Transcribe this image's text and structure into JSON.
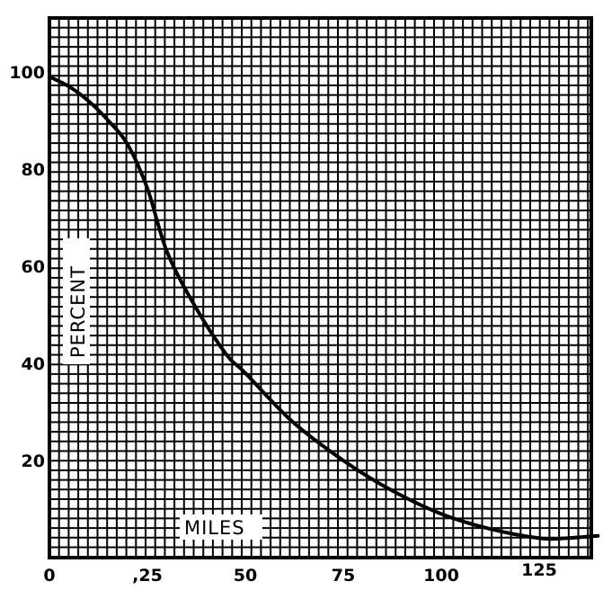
{
  "chart_data": {
    "type": "line",
    "title": "",
    "xlabel": "MILES",
    "ylabel": "PERCENT",
    "x_ticks": [
      "0",
      ",25",
      "50",
      "75",
      "100",
      "125"
    ],
    "y_ticks": [
      "20",
      "40",
      "60",
      "80",
      "100"
    ],
    "xlim": [
      0,
      140
    ],
    "ylim": [
      0,
      110
    ],
    "grid": true,
    "legend": null,
    "series": [
      {
        "name": "percent",
        "x": [
          0,
          5,
          10,
          15,
          20,
          25,
          30,
          37,
          45,
          50,
          62,
          75,
          87,
          100,
          112,
          125,
          132,
          140
        ],
        "y": [
          99,
          97,
          94,
          90,
          85,
          76,
          63,
          52,
          42,
          38,
          28,
          20,
          14,
          9,
          6,
          4,
          4,
          4.5
        ]
      }
    ]
  }
}
